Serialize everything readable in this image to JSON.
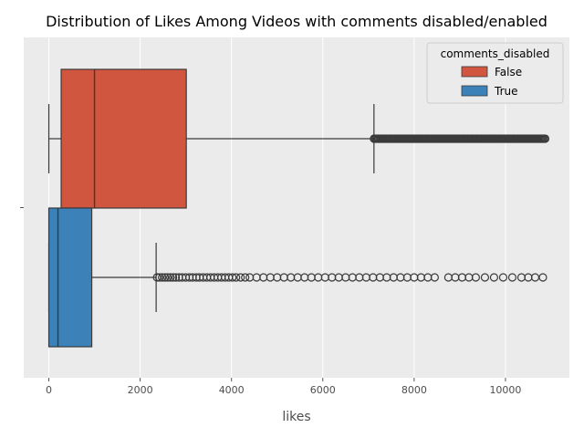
{
  "chart_data": {
    "type": "box",
    "orientation": "horizontal",
    "title": "Distribution of Likes Among Videos with comments disabled/enabled",
    "xlabel": "likes",
    "ylabel": "",
    "xlim": [
      -550,
      11400
    ],
    "xticks": [
      0,
      2000,
      4000,
      6000,
      8000,
      10000
    ],
    "grid": true,
    "legend": {
      "title": "comments_disabled",
      "placement": "top-right",
      "entries": [
        "False",
        "True"
      ]
    },
    "colors": {
      "False": "#d0563f",
      "True": "#3c82b8",
      "background": "#ebebeb",
      "grid": "#ffffff",
      "line": "#3a3a3a"
    },
    "series": [
      {
        "name": "False",
        "min": 0,
        "q1": 270,
        "median": 1000,
        "q3": 3010,
        "whisker_low": 0,
        "whisker_high": 7120,
        "outliers": [
          7120,
          7200,
          7300,
          7400,
          7500,
          7600,
          7700,
          7800,
          7900,
          8000,
          8100,
          8200,
          8300,
          8400,
          8500,
          8600,
          8700,
          8800,
          8900,
          9000,
          9100,
          9200,
          9300,
          9400,
          9500,
          9600,
          9700,
          9800,
          9900,
          10000,
          10100,
          10200,
          10300,
          10400,
          10500,
          10600,
          10700,
          10800,
          10870
        ]
      },
      {
        "name": "True",
        "min": 0,
        "q1": 0,
        "median": 200,
        "q3": 940,
        "whisker_low": 0,
        "whisker_high": 2350,
        "outliers": [
          2370,
          2420,
          2480,
          2540,
          2600,
          2660,
          2720,
          2780,
          2850,
          2920,
          3000,
          3080,
          3150,
          3230,
          3300,
          3380,
          3460,
          3540,
          3620,
          3700,
          3780,
          3860,
          3940,
          4020,
          4100,
          4200,
          4300,
          4400,
          4550,
          4700,
          4850,
          5000,
          5150,
          5300,
          5450,
          5600,
          5750,
          5900,
          6050,
          6200,
          6350,
          6500,
          6650,
          6800,
          6950,
          7100,
          7250,
          7400,
          7550,
          7700,
          7850,
          8000,
          8150,
          8300,
          8450,
          8750,
          8900,
          9050,
          9200,
          9350,
          9550,
          9750,
          9950,
          10150,
          10350,
          10500,
          10650,
          10820
        ]
      }
    ]
  }
}
